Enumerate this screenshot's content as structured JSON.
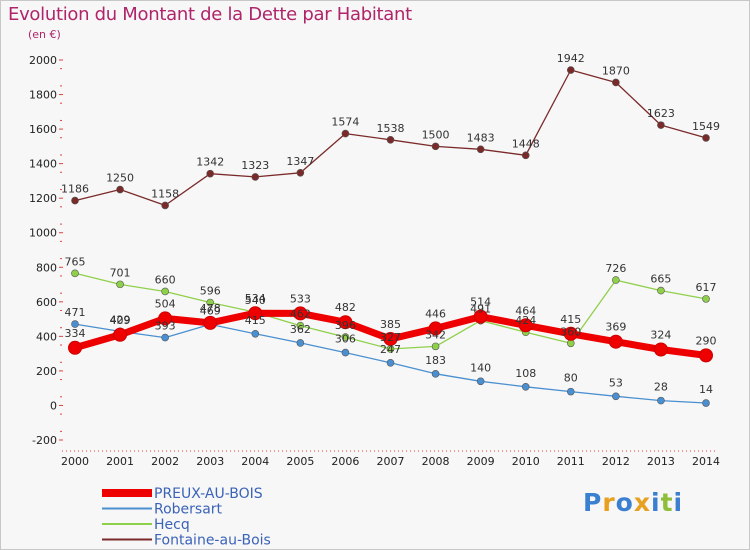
{
  "title": "Evolution du Montant de la Dette par Habitant",
  "subtitle": "(en €)",
  "logo": "Proxiti",
  "chart_data": {
    "type": "line",
    "x": [
      2000,
      2001,
      2002,
      2003,
      2004,
      2005,
      2006,
      2007,
      2008,
      2009,
      2010,
      2011,
      2012,
      2013,
      2014
    ],
    "ylim": [
      -200,
      2000
    ],
    "yticks": [
      -200,
      0,
      200,
      400,
      600,
      800,
      1000,
      1200,
      1400,
      1600,
      1800,
      2000
    ],
    "grid": false,
    "legend_position": "bottom-left",
    "series": [
      {
        "name": "Fontaine-au-Bois",
        "color": "#7b2a2a",
        "values": [
          1186,
          1250,
          1158,
          1342,
          1323,
          1347,
          1574,
          1538,
          1500,
          1483,
          1448,
          1942,
          1870,
          1623,
          1549
        ]
      },
      {
        "name": "Hecq",
        "color": "#8fd04a",
        "values": [
          765,
          701,
          660,
          596,
          540,
          462,
          396,
          327,
          342,
          491,
          424,
          360,
          726,
          665,
          617
        ]
      },
      {
        "name": "Robersart",
        "color": "#4a8fd0",
        "values": [
          471,
          429,
          393,
          469,
          415,
          362,
          306,
          247,
          183,
          140,
          108,
          80,
          53,
          28,
          14
        ]
      },
      {
        "name": "PREUX-AU-BOIS",
        "color": "#ee0000",
        "values": [
          334,
          409,
          504,
          478,
          534,
          533,
          482,
          385,
          446,
          514,
          464,
          415,
          369,
          324,
          290
        ]
      }
    ]
  }
}
